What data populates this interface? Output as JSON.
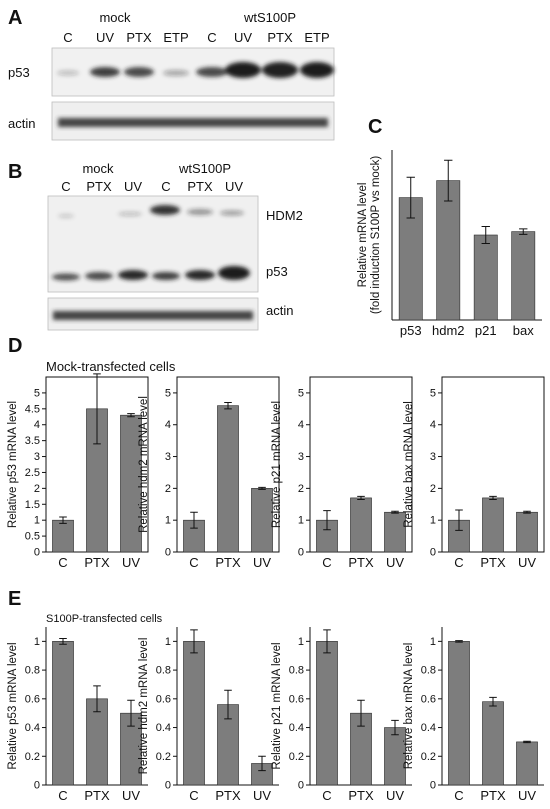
{
  "panels": {
    "A": {
      "letter": "A",
      "groups": [
        "mock",
        "wtS100P"
      ],
      "lanes": [
        "C",
        "UV",
        "PTX",
        "ETP",
        "C",
        "UV",
        "PTX",
        "ETP"
      ],
      "rows": [
        "p53",
        "actin"
      ]
    },
    "B": {
      "letter": "B",
      "groups": [
        "mock",
        "wtS100P"
      ],
      "lanes": [
        "C",
        "PTX",
        "UV",
        "C",
        "PTX",
        "UV"
      ],
      "bands_right": [
        "HDM2",
        "p53"
      ],
      "rows_right_bottom": "actin"
    },
    "C": {
      "letter": "C"
    },
    "D": {
      "letter": "D",
      "subtitle": "Mock-transfected cells"
    },
    "E": {
      "letter": "E",
      "subtitle": "S100P-transfected cells"
    }
  },
  "chart_data": [
    {
      "id": "C",
      "type": "bar",
      "categories": [
        "p53",
        "hdm2",
        "p21",
        "bax"
      ],
      "values": [
        3.6,
        4.1,
        2.5,
        2.6
      ],
      "errors": [
        0.6,
        0.6,
        0.25,
        0.08
      ],
      "ylabel": "Relative mRNA level\n(fold induction S100P vs mock)",
      "ylim": [
        0,
        5
      ],
      "yticks": []
    },
    {
      "id": "D1",
      "type": "bar",
      "categories": [
        "C",
        "PTX",
        "UV"
      ],
      "values": [
        1.0,
        4.5,
        4.3
      ],
      "errors": [
        0.1,
        1.1,
        0.05
      ],
      "ylabel": "Relative p53 mRNA level",
      "ylim": [
        0,
        5.5
      ],
      "yticks": [
        "0",
        "0.5",
        "1",
        "1.5",
        "2",
        "2.5",
        "3",
        "3.5",
        "4",
        "4.5",
        "5"
      ]
    },
    {
      "id": "D2",
      "type": "bar",
      "categories": [
        "C",
        "PTX",
        "UV"
      ],
      "values": [
        1.0,
        4.6,
        2.0
      ],
      "errors": [
        0.25,
        0.1,
        0.03
      ],
      "ylabel": "Relative hdm2 mRNA level",
      "ylim": [
        0,
        5.5
      ],
      "yticks": [
        "0",
        "1",
        "2",
        "3",
        "4",
        "5"
      ]
    },
    {
      "id": "D3",
      "type": "bar",
      "categories": [
        "C",
        "PTX",
        "UV"
      ],
      "values": [
        1.0,
        1.7,
        1.25
      ],
      "errors": [
        0.3,
        0.05,
        0.03
      ],
      "ylabel": "Relative p21 mRNA level",
      "ylim": [
        0,
        5.5
      ],
      "yticks": [
        "0",
        "1",
        "2",
        "3",
        "4",
        "5"
      ]
    },
    {
      "id": "D4",
      "type": "bar",
      "categories": [
        "C",
        "PTX",
        "UV"
      ],
      "values": [
        1.0,
        1.7,
        1.25
      ],
      "errors": [
        0.32,
        0.05,
        0.03
      ],
      "ylabel": "Relative bax mRNA level",
      "ylim": [
        0,
        5.5
      ],
      "yticks": [
        "0",
        "1",
        "2",
        "3",
        "4",
        "5"
      ]
    },
    {
      "id": "E1",
      "type": "bar",
      "categories": [
        "C",
        "PTX",
        "UV"
      ],
      "values": [
        1.0,
        0.6,
        0.5
      ],
      "errors": [
        0.02,
        0.09,
        0.09
      ],
      "ylabel": "Relative p53 mRNA level",
      "ylim": [
        0,
        1.1
      ],
      "yticks": [
        "0",
        "0.2",
        "0.4",
        "0.6",
        "0.8",
        "1"
      ]
    },
    {
      "id": "E2",
      "type": "bar",
      "categories": [
        "C",
        "PTX",
        "UV"
      ],
      "values": [
        1.0,
        0.56,
        0.15
      ],
      "errors": [
        0.08,
        0.1,
        0.05
      ],
      "ylabel": "Relative hdm2 mRNA level",
      "ylim": [
        0,
        1.1
      ],
      "yticks": [
        "0",
        "0.2",
        "0.4",
        "0.6",
        "0.8",
        "1"
      ]
    },
    {
      "id": "E3",
      "type": "bar",
      "categories": [
        "C",
        "PTX",
        "UV"
      ],
      "values": [
        1.0,
        0.5,
        0.4
      ],
      "errors": [
        0.08,
        0.09,
        0.05
      ],
      "ylabel": "Relative p21 mRNA level",
      "ylim": [
        0,
        1.1
      ],
      "yticks": [
        "0",
        "0.2",
        "0.4",
        "0.6",
        "0.8",
        "1"
      ]
    },
    {
      "id": "E4",
      "type": "bar",
      "categories": [
        "C",
        "PTX",
        "UV"
      ],
      "values": [
        1.0,
        0.58,
        0.3
      ],
      "errors": [
        0.005,
        0.03,
        0.005
      ],
      "ylabel": "Relative bax mRNA level",
      "ylim": [
        0,
        1.1
      ],
      "yticks": [
        "0",
        "0.2",
        "0.4",
        "0.6",
        "0.8",
        "1"
      ]
    }
  ]
}
